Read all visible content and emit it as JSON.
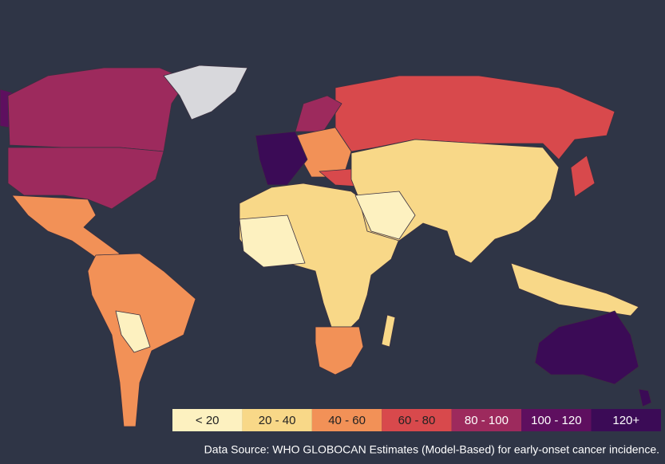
{
  "legend": [
    {
      "label": "< 20",
      "color": "#fdf1c0"
    },
    {
      "label": "20 - 40",
      "color": "#f8d888"
    },
    {
      "label": "40 - 60",
      "color": "#f29157"
    },
    {
      "label": "60 - 80",
      "color": "#d8494c"
    },
    {
      "label": "80 - 100",
      "color": "#9d2a5d"
    },
    {
      "label": "100 - 120",
      "color": "#5e0f5f"
    },
    {
      "label": "120+",
      "color": "#3b0b56"
    }
  ],
  "source": "Data Source: WHO GLOBOCAN Estimates (Model-Based) for early-onset cancer incidence."
}
